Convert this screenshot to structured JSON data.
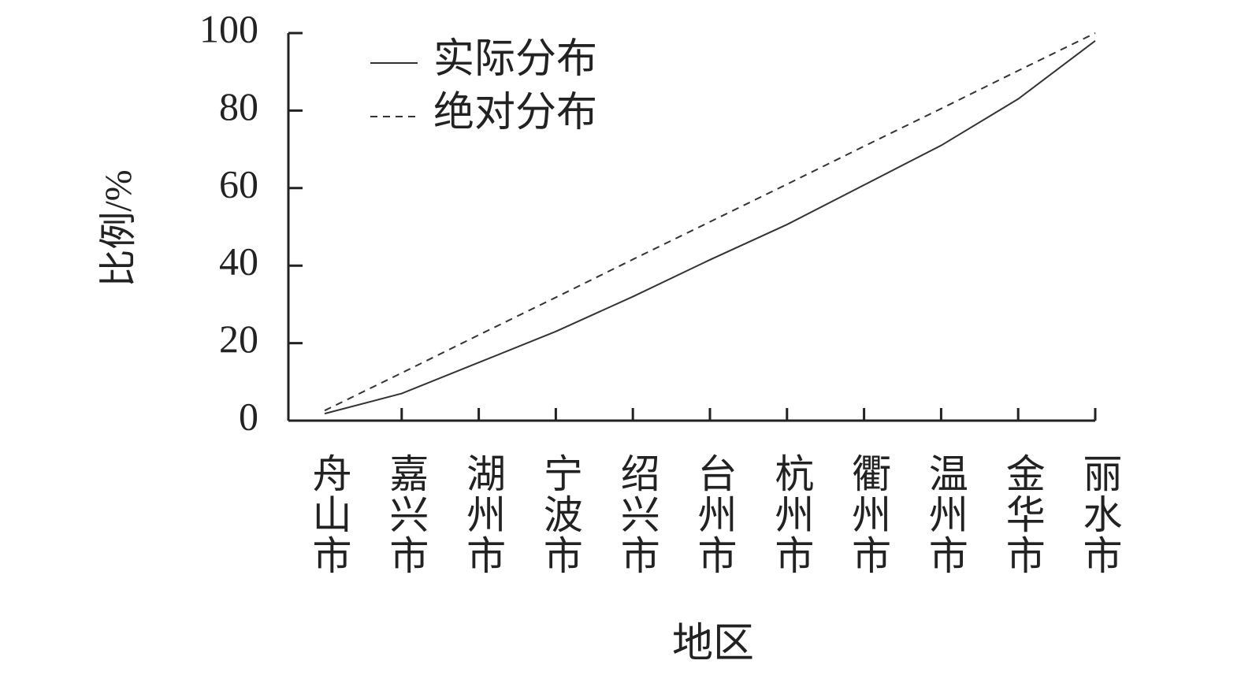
{
  "chart_data": {
    "type": "line",
    "x_label": "地区",
    "y_label": "比例/%",
    "categories": [
      "舟山市",
      "嘉兴市",
      "湖州市",
      "宁波市",
      "绍兴市",
      "台州市",
      "杭州市",
      "衢州市",
      "温州市",
      "金华市",
      "丽水市"
    ],
    "series": [
      {
        "name": "实际分布",
        "color": "#333333",
        "linestyle": "solid",
        "values": [
          1.8,
          7,
          15,
          23,
          32,
          41.5,
          50.6,
          60.8,
          71,
          83,
          98
        ]
      },
      {
        "name": "绝对分布",
        "color": "#333333",
        "linestyle": "dashed",
        "values": [
          2.6,
          12.3,
          22.1,
          31.8,
          41.6,
          51.3,
          61,
          70.8,
          80.5,
          90.3,
          100
        ]
      }
    ],
    "ylim": [
      0,
      100
    ],
    "yticks": [
      0,
      20,
      40,
      60,
      80,
      100
    ],
    "legend": "upper left"
  }
}
